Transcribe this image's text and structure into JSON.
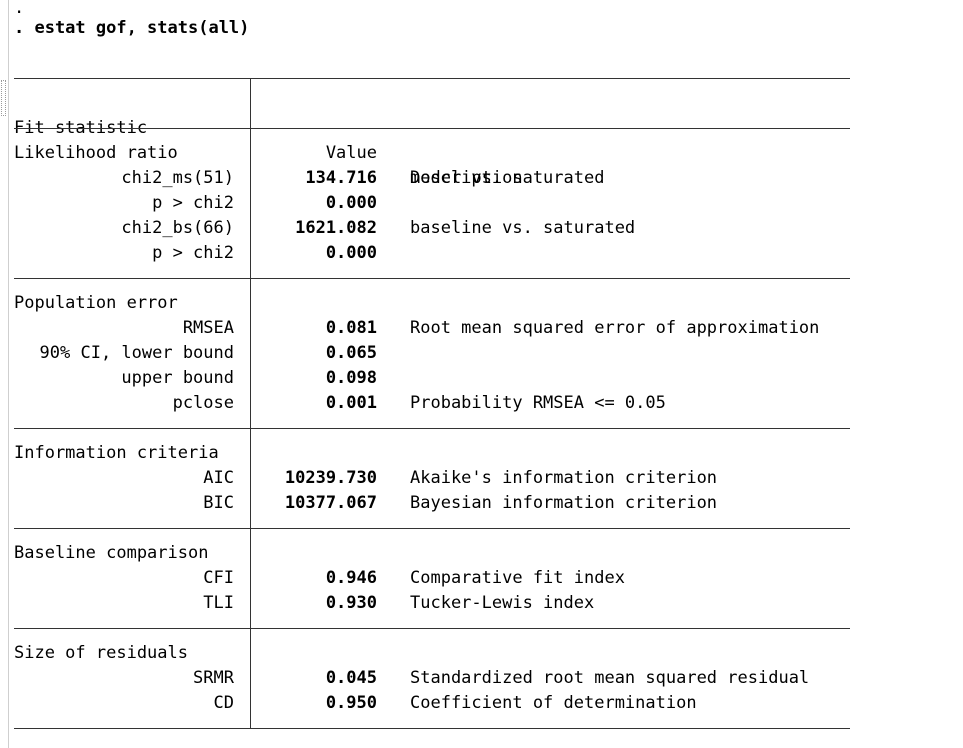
{
  "prompt_line": ".",
  "command": ". estat gof, stats(all)",
  "table": {
    "header": {
      "fit_statistic": "Fit statistic",
      "value": "Value",
      "description": "Description"
    },
    "groups": [
      {
        "title": "Likelihood ratio",
        "rows": [
          {
            "label": "chi2_ms(51)",
            "value": "134.716",
            "description": "model vs. saturated"
          },
          {
            "label": "p > chi2",
            "value": "0.000",
            "description": ""
          },
          {
            "label": "chi2_bs(66)",
            "value": "1621.082",
            "description": "baseline vs. saturated"
          },
          {
            "label": "p > chi2",
            "value": "0.000",
            "description": ""
          }
        ]
      },
      {
        "title": "Population error",
        "rows": [
          {
            "label": "RMSEA",
            "value": "0.081",
            "description": "Root mean squared error of approximation"
          },
          {
            "label": "90% CI, lower bound",
            "value": "0.065",
            "description": ""
          },
          {
            "label": "upper bound",
            "value": "0.098",
            "description": ""
          },
          {
            "label": "pclose",
            "value": "0.001",
            "description": "Probability RMSEA <= 0.05"
          }
        ]
      },
      {
        "title": "Information criteria",
        "rows": [
          {
            "label": "AIC",
            "value": "10239.730",
            "description": "Akaike's information criterion"
          },
          {
            "label": "BIC",
            "value": "10377.067",
            "description": "Bayesian information criterion"
          }
        ]
      },
      {
        "title": "Baseline comparison",
        "rows": [
          {
            "label": "CFI",
            "value": "0.946",
            "description": "Comparative fit index"
          },
          {
            "label": "TLI",
            "value": "0.930",
            "description": "Tucker-Lewis index"
          }
        ]
      },
      {
        "title": "Size of residuals",
        "rows": [
          {
            "label": "SRMR",
            "value": "0.045",
            "description": "Standardized root mean squared residual"
          },
          {
            "label": "CD",
            "value": "0.950",
            "description": "Coefficient of determination"
          }
        ]
      }
    ]
  }
}
